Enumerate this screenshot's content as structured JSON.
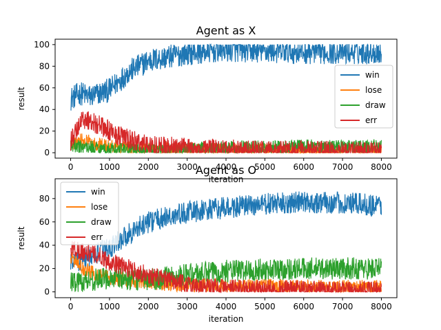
{
  "chart_data": [
    {
      "type": "line",
      "title": "Agent as X",
      "xlabel": "iteration",
      "ylabel": "result",
      "xlim": [
        -400,
        8400
      ],
      "ylim": [
        -5,
        105
      ],
      "xticks": [
        0,
        1000,
        2000,
        3000,
        4000,
        5000,
        6000,
        7000,
        8000
      ],
      "yticks": [
        0,
        20,
        40,
        60,
        80,
        100
      ],
      "legend": "right",
      "series": [
        {
          "name": "win",
          "color": "#1f77b4",
          "anchors": [
            [
              0,
              50
            ],
            [
              250,
              55
            ],
            [
              500,
              52
            ],
            [
              1000,
              58
            ],
            [
              1500,
              75
            ],
            [
              2000,
              85
            ],
            [
              3000,
              92
            ],
            [
              4000,
              95
            ],
            [
              5000,
              94
            ],
            [
              6000,
              93
            ],
            [
              7000,
              93
            ],
            [
              8000,
              93
            ]
          ],
          "noise": 7
        },
        {
          "name": "lose",
          "color": "#ff7f0e",
          "anchors": [
            [
              0,
              8
            ],
            [
              300,
              12
            ],
            [
              700,
              8
            ],
            [
              1000,
              6
            ],
            [
              1500,
              5
            ],
            [
              2000,
              4
            ],
            [
              3000,
              3
            ],
            [
              4000,
              2
            ],
            [
              5000,
              2
            ],
            [
              6000,
              1
            ],
            [
              7000,
              1
            ],
            [
              8000,
              1
            ]
          ],
          "noise": 4
        },
        {
          "name": "draw",
          "color": "#2ca02c",
          "anchors": [
            [
              0,
              6
            ],
            [
              500,
              5
            ],
            [
              1000,
              3
            ],
            [
              2000,
              2
            ],
            [
              3000,
              3
            ],
            [
              4000,
              5
            ],
            [
              5000,
              5
            ],
            [
              6000,
              6
            ],
            [
              7000,
              6
            ],
            [
              8000,
              6
            ]
          ],
          "noise": 4
        },
        {
          "name": "err",
          "color": "#d62728",
          "anchors": [
            [
              0,
              10
            ],
            [
              300,
              32
            ],
            [
              600,
              28
            ],
            [
              1000,
              20
            ],
            [
              1500,
              12
            ],
            [
              2000,
              7
            ],
            [
              3000,
              4
            ],
            [
              4000,
              3
            ],
            [
              5000,
              2
            ],
            [
              6000,
              2
            ],
            [
              7000,
              1
            ],
            [
              8000,
              1
            ]
          ],
          "noise": 6
        }
      ]
    },
    {
      "type": "line",
      "title": "Agent as O",
      "xlabel": "iteration",
      "ylabel": "result",
      "xlim": [
        -400,
        8400
      ],
      "ylim": [
        -5,
        97
      ],
      "xticks": [
        0,
        1000,
        2000,
        3000,
        4000,
        5000,
        6000,
        7000,
        8000
      ],
      "yticks": [
        0,
        20,
        40,
        60,
        80
      ],
      "legend": "upper left",
      "series": [
        {
          "name": "win",
          "color": "#1f77b4",
          "anchors": [
            [
              0,
              25
            ],
            [
              500,
              30
            ],
            [
              1000,
              38
            ],
            [
              1500,
              50
            ],
            [
              2000,
              60
            ],
            [
              3000,
              68
            ],
            [
              4000,
              72
            ],
            [
              5000,
              75
            ],
            [
              6000,
              77
            ],
            [
              7000,
              76
            ],
            [
              8000,
              74
            ]
          ],
          "noise": 6
        },
        {
          "name": "lose",
          "color": "#ff7f0e",
          "anchors": [
            [
              0,
              30
            ],
            [
              300,
              20
            ],
            [
              700,
              15
            ],
            [
              1000,
              12
            ],
            [
              2000,
              8
            ],
            [
              3000,
              6
            ],
            [
              4000,
              5
            ],
            [
              5000,
              5
            ],
            [
              6000,
              4
            ],
            [
              7000,
              4
            ],
            [
              8000,
              4
            ]
          ],
          "noise": 4
        },
        {
          "name": "draw",
          "color": "#2ca02c",
          "anchors": [
            [
              0,
              8
            ],
            [
              500,
              10
            ],
            [
              1000,
              12
            ],
            [
              2000,
              10
            ],
            [
              3000,
              15
            ],
            [
              4000,
              18
            ],
            [
              5000,
              19
            ],
            [
              6000,
              20
            ],
            [
              7000,
              20
            ],
            [
              8000,
              20
            ]
          ],
          "noise": 6
        },
        {
          "name": "err",
          "color": "#d62728",
          "anchors": [
            [
              0,
              38
            ],
            [
              300,
              35
            ],
            [
              800,
              30
            ],
            [
              1000,
              26
            ],
            [
              1500,
              20
            ],
            [
              2000,
              14
            ],
            [
              3000,
              6
            ],
            [
              4000,
              3
            ],
            [
              5000,
              2
            ],
            [
              6000,
              2
            ],
            [
              7000,
              1
            ],
            [
              8000,
              1
            ]
          ],
          "noise": 5
        }
      ]
    }
  ]
}
